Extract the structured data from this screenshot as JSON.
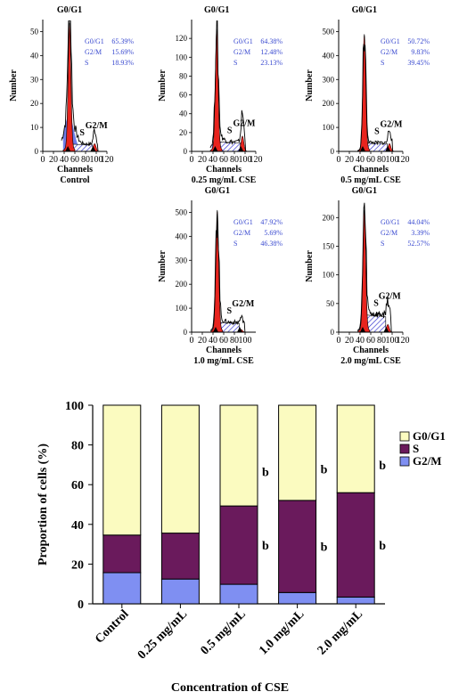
{
  "chart_data": [
    {
      "type": "area",
      "panel_label": "Control",
      "xlabel": "Channels",
      "ylabel": "Number",
      "xticks": [
        0,
        20,
        40,
        60,
        80,
        100,
        120
      ],
      "yticks": [
        0,
        10,
        20,
        30,
        40,
        50
      ],
      "xlim": [
        0,
        120
      ],
      "ylim": [
        0,
        55
      ],
      "peak_labels": {
        "g0g1": "G0/G1",
        "s": "S",
        "g2m": "G2/M"
      },
      "stats": [
        {
          "name": "G0/G1",
          "value": "65.39%"
        },
        {
          "name": "G2/M",
          "value": "15.69%"
        },
        {
          "name": "S",
          "value": "18.93%"
        }
      ],
      "peak_channel": 50,
      "peak_height": 52,
      "g2m_channel": 97,
      "g2m_height": 6,
      "s_level": 3,
      "blue_level": 15
    },
    {
      "type": "area",
      "panel_label": "0.25 mg/mL CSE",
      "xlabel": "Channels",
      "ylabel": "Number",
      "xticks": [
        0,
        20,
        40,
        60,
        80,
        100,
        120
      ],
      "yticks": [
        0,
        20,
        40,
        60,
        80,
        100,
        120
      ],
      "xlim": [
        0,
        120
      ],
      "ylim": [
        0,
        140
      ],
      "peak_labels": {
        "g0g1": "G0/G1",
        "s": "S",
        "g2m": "G2/M"
      },
      "stats": [
        {
          "name": "G0/G1",
          "value": "64.38%"
        },
        {
          "name": "G2/M",
          "value": "12.48%"
        },
        {
          "name": "S",
          "value": "23.13%"
        }
      ],
      "peak_channel": 47,
      "peak_height": 125,
      "g2m_channel": 95,
      "g2m_height": 30,
      "s_level": 10,
      "blue_level": 10
    },
    {
      "type": "area",
      "panel_label": "0.5 mg/mL CSE",
      "xlabel": "Channels",
      "ylabel": "Number",
      "xticks": [
        0,
        20,
        40,
        60,
        80,
        100,
        120
      ],
      "yticks": [
        0,
        100,
        200,
        300,
        400,
        500
      ],
      "xlim": [
        0,
        120
      ],
      "ylim": [
        0,
        550
      ],
      "peak_labels": {
        "g0g1": "G0/G1",
        "s": "S",
        "g2m": "G2/M"
      },
      "stats": [
        {
          "name": "G0/G1",
          "value": "50.72%"
        },
        {
          "name": "G2/M",
          "value": "9.83%"
        },
        {
          "name": "S",
          "value": "39.45%"
        }
      ],
      "peak_channel": 48,
      "peak_height": 470,
      "g2m_channel": 95,
      "g2m_height": 60,
      "s_level": 35,
      "blue_level": 5
    },
    {
      "type": "area",
      "panel_label": "1.0 mg/mL CSE",
      "xlabel": "Channels",
      "ylabel": "Number",
      "xticks": [
        0,
        20,
        40,
        60,
        80,
        100
      ],
      "yticks": [
        0,
        100,
        200,
        300,
        400,
        500
      ],
      "xlim": [
        0,
        120
      ],
      "ylim": [
        0,
        550
      ],
      "peak_labels": {
        "g0g1": "G0/G1",
        "s": "S",
        "g2m": "G2/M"
      },
      "stats": [
        {
          "name": "G0/G1",
          "value": "47.92%"
        },
        {
          "name": "G2/M",
          "value": "5.69%"
        },
        {
          "name": "S",
          "value": "46.38%"
        }
      ],
      "peak_channel": 48,
      "peak_height": 490,
      "g2m_channel": 93,
      "g2m_height": 20,
      "s_level": 40,
      "blue_level": 20
    },
    {
      "type": "area",
      "panel_label": "2.0 mg/mL CSE",
      "xlabel": "Channels",
      "ylabel": "Number",
      "xticks": [
        0,
        20,
        40,
        60,
        80,
        100,
        120
      ],
      "yticks": [
        0,
        50,
        100,
        150,
        200
      ],
      "xlim": [
        0,
        120
      ],
      "ylim": [
        0,
        230
      ],
      "peak_labels": {
        "g0g1": "G0/G1",
        "s": "S",
        "g2m": "G2/M"
      },
      "stats": [
        {
          "name": "G0/G1",
          "value": "44.04%"
        },
        {
          "name": "G2/M",
          "value": "3.39%"
        },
        {
          "name": "S",
          "value": "52.57%"
        }
      ],
      "peak_channel": 48,
      "peak_height": 205,
      "g2m_channel": 92,
      "g2m_height": 25,
      "s_level": 30,
      "blue_level": 8
    },
    {
      "type": "bar",
      "stacked": true,
      "categories": [
        "Control",
        "0.25 mg/mL",
        "0.5 mg/mL",
        "1.0 mg/mL",
        "2.0 mg/mL"
      ],
      "series": [
        {
          "name": "G2/M",
          "values": [
            15.69,
            12.48,
            9.83,
            5.69,
            3.39
          ],
          "color": "#7f8ff2"
        },
        {
          "name": "S",
          "values": [
            18.93,
            23.13,
            39.45,
            46.38,
            52.57
          ],
          "color": "#6a1a5c"
        },
        {
          "name": "G0/G1",
          "values": [
            65.39,
            64.38,
            50.72,
            47.92,
            44.04
          ],
          "color": "#fbfbc0"
        }
      ],
      "legend_order": [
        "G0/G1",
        "S",
        "G2/M"
      ],
      "legend_position": "right",
      "annotations": [
        {
          "category": "0.5 mg/mL",
          "series": "G0/G1",
          "text": "b"
        },
        {
          "category": "0.5 mg/mL",
          "series": "S",
          "text": "b"
        },
        {
          "category": "1.0 mg/mL",
          "series": "G0/G1",
          "text": "b"
        },
        {
          "category": "1.0 mg/mL",
          "series": "S",
          "text": "b"
        },
        {
          "category": "2.0 mg/mL",
          "series": "G0/G1",
          "text": "b"
        },
        {
          "category": "2.0 mg/mL",
          "series": "S",
          "text": "b"
        }
      ],
      "ylabel": "Proportion of cells (%)",
      "xlabel": "Concentration of CSE",
      "yticks": [
        0,
        20,
        40,
        60,
        80,
        100
      ],
      "ylim": [
        0,
        100
      ]
    }
  ]
}
